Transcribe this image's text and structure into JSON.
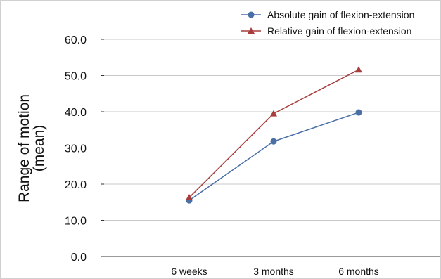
{
  "chart_data": {
    "type": "line",
    "title": "",
    "xlabel": "",
    "ylabel": [
      "Range of motion",
      "(mean)"
    ],
    "categories": [
      "6 weeks",
      "3 months",
      "6 months"
    ],
    "ylim": [
      0,
      60
    ],
    "yticks": [
      "0.0",
      "10.0",
      "20.0",
      "30.0",
      "40.0",
      "50.0",
      "60.0"
    ],
    "grid": true,
    "legend": "top-right",
    "series": [
      {
        "name": "Absolute gain of flexion-extension",
        "values": [
          15.5,
          31.8,
          39.8
        ],
        "color": "#4a6fa5",
        "marker": "circle"
      },
      {
        "name": "Relative gain of flexion-extension",
        "values": [
          16.3,
          39.5,
          51.6
        ],
        "color": "#a83d3d",
        "marker": "triangle"
      }
    ]
  }
}
